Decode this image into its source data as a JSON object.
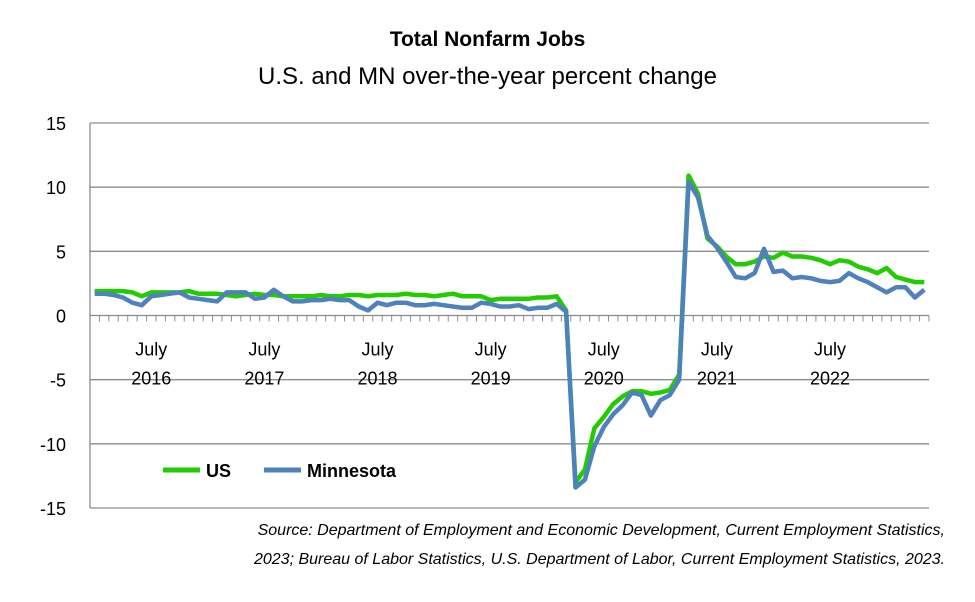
{
  "chart_data": {
    "type": "line",
    "title": "Total Nonfarm Jobs",
    "subtitle": "U.S. and MN over-the-year percent change",
    "ylim": [
      -15,
      15
    ],
    "yticks": [
      15,
      10,
      5,
      0,
      -5,
      -10,
      -15
    ],
    "x_start": "January 2016",
    "x_end": "May 2023",
    "x_tick_labels": [
      {
        "month": "July",
        "year": "2016"
      },
      {
        "month": "July",
        "year": "2017"
      },
      {
        "month": "July",
        "year": "2018"
      },
      {
        "month": "July",
        "year": "2019"
      },
      {
        "month": "July",
        "year": "2020"
      },
      {
        "month": "July",
        "year": "2021"
      },
      {
        "month": "July",
        "year": "2022"
      }
    ],
    "grid": true,
    "legend_position": "bottom-left",
    "series": [
      {
        "name": "US",
        "color": "#22CC00",
        "values": [
          1.9,
          1.9,
          1.9,
          1.9,
          1.8,
          1.5,
          1.8,
          1.8,
          1.8,
          1.8,
          1.9,
          1.7,
          1.7,
          1.7,
          1.6,
          1.5,
          1.6,
          1.7,
          1.6,
          1.6,
          1.5,
          1.5,
          1.5,
          1.5,
          1.6,
          1.5,
          1.5,
          1.6,
          1.6,
          1.5,
          1.6,
          1.6,
          1.6,
          1.7,
          1.6,
          1.6,
          1.5,
          1.6,
          1.7,
          1.5,
          1.5,
          1.5,
          1.2,
          1.3,
          1.3,
          1.3,
          1.3,
          1.4,
          1.4,
          1.5,
          0.4,
          -13.0,
          -12.0,
          -8.8,
          -7.9,
          -6.9,
          -6.3,
          -5.9,
          -5.9,
          -6.1,
          -6.0,
          -5.8,
          -4.6,
          10.9,
          9.5,
          6.0,
          5.4,
          4.6,
          4.0,
          4.0,
          4.2,
          4.6,
          4.5,
          4.9,
          4.6,
          4.6,
          4.5,
          4.3,
          4.0,
          4.3,
          4.2,
          3.8,
          3.6,
          3.3,
          3.7,
          3.0,
          2.8,
          2.6,
          2.6
        ]
      },
      {
        "name": "Minnesota",
        "color": "#4F81BD",
        "values": [
          1.7,
          1.7,
          1.6,
          1.4,
          1.0,
          0.8,
          1.5,
          1.6,
          1.7,
          1.8,
          1.4,
          1.3,
          1.2,
          1.1,
          1.8,
          1.8,
          1.8,
          1.3,
          1.4,
          2.0,
          1.5,
          1.1,
          1.1,
          1.2,
          1.2,
          1.3,
          1.2,
          1.2,
          0.7,
          0.4,
          1.0,
          0.8,
          1.0,
          1.0,
          0.8,
          0.8,
          0.9,
          0.8,
          0.7,
          0.6,
          0.6,
          1.0,
          0.9,
          0.7,
          0.7,
          0.8,
          0.5,
          0.6,
          0.6,
          0.9,
          0.3,
          -13.4,
          -12.8,
          -10.2,
          -8.7,
          -7.7,
          -7.0,
          -6.0,
          -6.2,
          -7.8,
          -6.6,
          -6.2,
          -5.0,
          10.4,
          9.2,
          6.2,
          5.3,
          4.2,
          3.0,
          2.9,
          3.3,
          5.2,
          3.4,
          3.5,
          2.9,
          3.0,
          2.9,
          2.7,
          2.6,
          2.7,
          3.3,
          2.9,
          2.6,
          2.2,
          1.8,
          2.2,
          2.2,
          1.4,
          2.0
        ]
      }
    ],
    "source_line1": "Source: Department of Employment and Economic Development, Current Employment Statistics,",
    "source_line2": "2023; Bureau of Labor Statistics, U.S. Department of Labor, Current Employment Statistics, 2023."
  }
}
